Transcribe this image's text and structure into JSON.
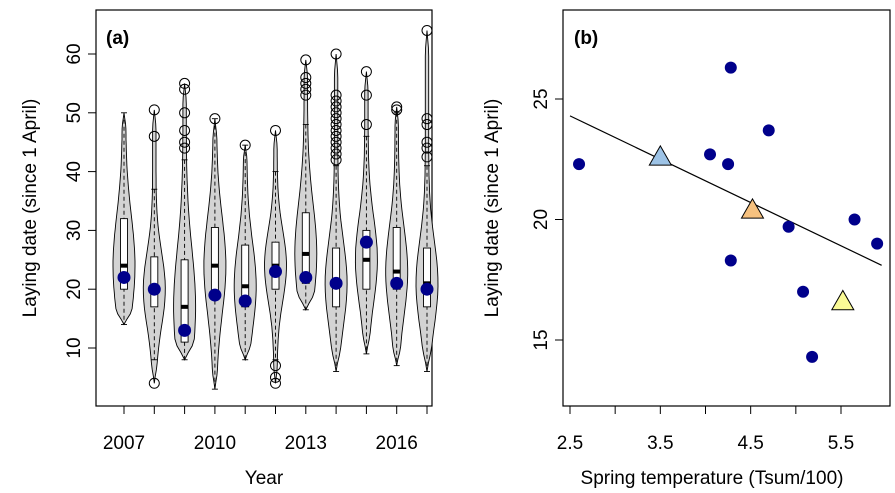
{
  "chart_data": [
    {
      "type": "violin",
      "panel_label": "(a)",
      "xlabel": "Year",
      "ylabel": "Laying date (since 1 April)",
      "x_tick_labels": [
        {
          "year": 2007,
          "label": "2007"
        },
        {
          "year": 2010,
          "label": "2010"
        },
        {
          "year": 2013,
          "label": "2013"
        },
        {
          "year": 2016,
          "label": "2016"
        }
      ],
      "ylim": [
        0,
        65
      ],
      "y_ticks": [
        10,
        20,
        30,
        40,
        50,
        60
      ],
      "grid": false,
      "colors": {
        "violin_fill": "#d3d3d3",
        "mean_point": "#00008b"
      },
      "years": [
        {
          "year": 2007,
          "min": 14,
          "max": 50,
          "q1": 20,
          "median": 24,
          "q3": 32,
          "whisker_low": 14,
          "whisker_high": 50,
          "mean": 22,
          "outliers": []
        },
        {
          "year": 2008,
          "min": 4,
          "max": 50.5,
          "q1": 17,
          "median": 20,
          "q3": 25.5,
          "whisker_low": 8,
          "whisker_high": 37,
          "mean": 20,
          "outliers": [
            4,
            46,
            50.5
          ]
        },
        {
          "year": 2009,
          "min": 8,
          "max": 55,
          "q1": 11,
          "median": 17,
          "q3": 25,
          "whisker_low": 8,
          "whisker_high": 42,
          "mean": 13,
          "outliers": [
            44,
            45,
            47,
            50,
            54,
            55
          ]
        },
        {
          "year": 2010,
          "min": 3,
          "max": 49,
          "q1": 19,
          "median": 24,
          "q3": 30.5,
          "whisker_low": 3,
          "whisker_high": 49,
          "mean": 19,
          "outliers": [
            49
          ]
        },
        {
          "year": 2011,
          "min": 8,
          "max": 44.5,
          "q1": 17,
          "median": 20.5,
          "q3": 27.5,
          "whisker_low": 8,
          "whisker_high": 44.5,
          "mean": 18,
          "outliers": [
            44.5
          ]
        },
        {
          "year": 2012,
          "min": 4,
          "max": 47,
          "q1": 20,
          "median": 24,
          "q3": 28,
          "whisker_low": 8,
          "whisker_high": 40,
          "mean": 23,
          "outliers": [
            4,
            5,
            7,
            47
          ]
        },
        {
          "year": 2013,
          "min": 16.5,
          "max": 59,
          "q1": 21,
          "median": 26,
          "q3": 33,
          "whisker_low": 16.5,
          "whisker_high": 48,
          "mean": 22,
          "outliers": [
            53,
            54,
            55,
            56,
            59
          ]
        },
        {
          "year": 2014,
          "min": 6,
          "max": 60,
          "q1": 17,
          "median": 21,
          "q3": 27,
          "whisker_low": 6,
          "whisker_high": 41,
          "mean": 21,
          "outliers": [
            42,
            43,
            44,
            45,
            46,
            47,
            48,
            49,
            50,
            51,
            52,
            53,
            60
          ]
        },
        {
          "year": 2015,
          "min": 9,
          "max": 57,
          "q1": 20,
          "median": 25,
          "q3": 30,
          "whisker_low": 9,
          "whisker_high": 46,
          "mean": 28,
          "outliers": [
            48,
            53,
            57
          ]
        },
        {
          "year": 2016,
          "min": 7,
          "max": 51,
          "q1": 20,
          "median": 23,
          "q3": 30.5,
          "whisker_low": 7,
          "whisker_high": 50,
          "mean": 21,
          "outliers": [
            50.5,
            51
          ]
        },
        {
          "year": 2017,
          "min": 6,
          "max": 64,
          "q1": 17,
          "median": 21,
          "q3": 27,
          "whisker_low": 6,
          "whisker_high": 41,
          "mean": 20,
          "outliers": [
            42.5,
            44,
            45,
            48,
            49,
            64
          ]
        }
      ]
    },
    {
      "type": "scatter",
      "panel_label": "(b)",
      "xlabel": "Spring temperature (Tsum/100)",
      "ylabel": "Laying date (since 1 April)",
      "xlim": [
        2.5,
        5.95
      ],
      "ylim": [
        12,
        28.5
      ],
      "x_ticks": [
        2.5,
        3.5,
        4.5,
        5.5
      ],
      "x_minor_ticks": [
        3.0,
        4.0,
        5.0
      ],
      "y_ticks": [
        15,
        20,
        25
      ],
      "grid": false,
      "points": [
        {
          "x": 2.6,
          "y": 22.3
        },
        {
          "x": 4.05,
          "y": 22.7
        },
        {
          "x": 4.25,
          "y": 22.3
        },
        {
          "x": 4.28,
          "y": 26.3
        },
        {
          "x": 4.28,
          "y": 18.3
        },
        {
          "x": 4.7,
          "y": 23.7
        },
        {
          "x": 4.92,
          "y": 19.7
        },
        {
          "x": 5.08,
          "y": 17.0
        },
        {
          "x": 5.18,
          "y": 14.3
        },
        {
          "x": 5.65,
          "y": 20.0
        },
        {
          "x": 5.9,
          "y": 19.0
        }
      ],
      "highlighted_points": [
        {
          "x": 3.5,
          "y": 22.6,
          "marker": "triangle",
          "color": "#9dc3e6"
        },
        {
          "x": 4.52,
          "y": 20.4,
          "marker": "triangle",
          "color": "#f6c17f"
        },
        {
          "x": 5.52,
          "y": 16.6,
          "marker": "triangle",
          "color": "#fafa96"
        }
      ],
      "regression_line": {
        "x": [
          2.5,
          5.95
        ],
        "y": [
          24.3,
          18.1
        ]
      },
      "colors": {
        "point": "#00008b"
      }
    }
  ]
}
